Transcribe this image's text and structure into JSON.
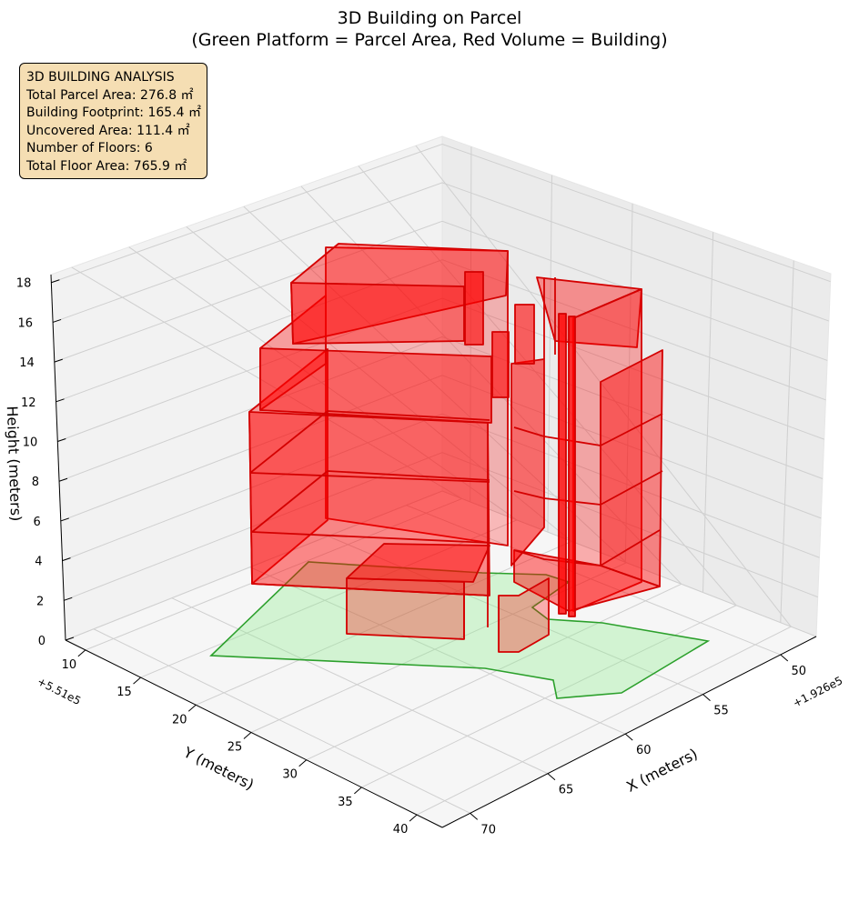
{
  "chart_data": {
    "type": "3d-polygon-volume",
    "title": "3D Building on Parcel",
    "subtitle": "(Green Platform = Parcel Area, Red Volume = Building)",
    "xlabel": "X (meters)",
    "ylabel": "Y (meters)",
    "zlabel": "Height (meters)",
    "x_offset_label": "+1.926e5",
    "y_offset_label": "+5.51e5",
    "x_ticks": [
      50,
      55,
      60,
      65,
      70
    ],
    "y_ticks": [
      10,
      15,
      20,
      25,
      30,
      35,
      40
    ],
    "z_ticks": [
      0,
      2,
      4,
      6,
      8,
      10,
      12,
      14,
      16,
      18
    ],
    "grid": true,
    "series": [
      {
        "name": "Parcel Area",
        "color": "#90ee90"
      },
      {
        "name": "Building",
        "color": "#ff0000"
      }
    ]
  },
  "info": {
    "heading": "3D BUILDING ANALYSIS",
    "lines": [
      "Total Parcel Area: 276.8 ㎡",
      "Building Footprint: 165.4 ㎡",
      "Uncovered Area: 111.4 ㎡",
      "Number of Floors: 6",
      "Total Floor Area: 765.9 ㎡"
    ]
  },
  "colors": {
    "parcel_fill": "#90ee90",
    "parcel_edge": "#2ca02c",
    "building_fill": "#ff0000",
    "building_edge": "#d40000",
    "info_bg": "#f5deb3"
  }
}
